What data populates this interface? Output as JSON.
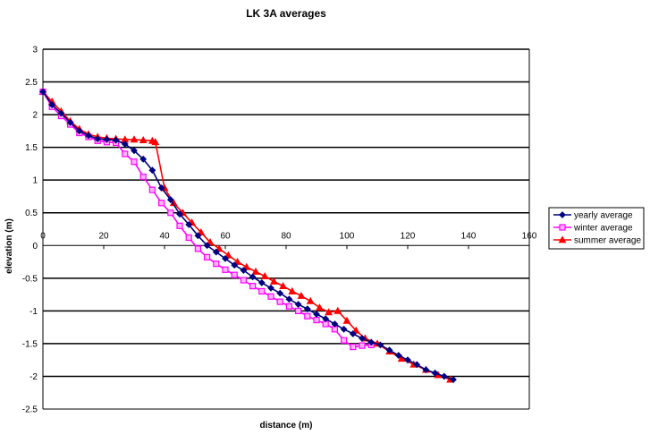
{
  "chart_data": {
    "type": "line",
    "title": "LK 3A averages",
    "xlabel": "distance (m)",
    "ylabel": "elevation (m)",
    "xlim": [
      0,
      160
    ],
    "ylim": [
      -2.5,
      3
    ],
    "xticks": [
      "0",
      "20",
      "40",
      "60",
      "80",
      "100",
      "120",
      "140",
      "160"
    ],
    "yticks": [
      "-2.5",
      "-2",
      "-1.5",
      "-1",
      "-0.5",
      "0",
      "0.5",
      "1",
      "1.5",
      "2",
      "2.5",
      "3"
    ],
    "grid": "horizontal",
    "legend_position": "right",
    "series": [
      {
        "name": "yearly average",
        "color": "#000080",
        "marker": "diamond",
        "x": [
          0,
          3,
          6,
          9,
          12,
          15,
          18,
          21,
          24,
          27,
          30,
          33,
          36,
          39,
          42,
          45,
          48,
          51,
          54,
          57,
          60,
          63,
          66,
          69,
          72,
          75,
          78,
          81,
          84,
          87,
          90,
          93,
          96,
          99,
          102,
          105,
          108,
          111,
          114,
          117,
          120,
          123,
          126,
          129,
          132,
          135
        ],
        "y": [
          2.35,
          2.15,
          2.02,
          1.88,
          1.75,
          1.68,
          1.63,
          1.62,
          1.61,
          1.55,
          1.45,
          1.32,
          1.15,
          0.88,
          0.7,
          0.48,
          0.32,
          0.15,
          0.0,
          -0.1,
          -0.2,
          -0.3,
          -0.38,
          -0.48,
          -0.57,
          -0.65,
          -0.73,
          -0.82,
          -0.9,
          -0.97,
          -1.05,
          -1.12,
          -1.2,
          -1.28,
          -1.35,
          -1.42,
          -1.48,
          -1.52,
          -1.6,
          -1.68,
          -1.75,
          -1.82,
          -1.9,
          -1.95,
          -2.0,
          -2.05
        ]
      },
      {
        "name": "winter average",
        "color": "#FF00FF",
        "marker": "square",
        "x": [
          0,
          3,
          6,
          9,
          12,
          15,
          18,
          21,
          24,
          27,
          30,
          33,
          36,
          39,
          42,
          45,
          48,
          51,
          54,
          57,
          60,
          63,
          66,
          69,
          72,
          75,
          78,
          81,
          84,
          87,
          90,
          93,
          96,
          99,
          102,
          105,
          108
        ],
        "y": [
          2.35,
          2.12,
          1.98,
          1.85,
          1.72,
          1.66,
          1.6,
          1.58,
          1.57,
          1.4,
          1.28,
          1.05,
          0.85,
          0.65,
          0.5,
          0.3,
          0.12,
          -0.05,
          -0.18,
          -0.28,
          -0.37,
          -0.45,
          -0.53,
          -0.62,
          -0.7,
          -0.78,
          -0.86,
          -0.93,
          -1.0,
          -1.08,
          -1.14,
          -1.2,
          -1.28,
          -1.45,
          -1.55,
          -1.53,
          -1.52
        ]
      },
      {
        "name": "summer average",
        "color": "#FF0000",
        "marker": "triangle",
        "x": [
          0,
          3,
          6,
          9,
          12,
          15,
          18,
          21,
          24,
          27,
          30,
          33,
          36,
          37,
          40,
          43,
          46,
          49,
          52,
          55,
          58,
          61,
          64,
          67,
          70,
          73,
          76,
          79,
          82,
          85,
          88,
          91,
          94,
          97,
          100,
          103,
          106,
          110,
          114,
          118,
          122,
          126,
          130,
          134
        ],
        "y": [
          2.35,
          2.2,
          2.05,
          1.9,
          1.78,
          1.7,
          1.66,
          1.64,
          1.63,
          1.62,
          1.62,
          1.61,
          1.6,
          1.58,
          0.88,
          0.65,
          0.5,
          0.35,
          0.2,
          0.05,
          -0.05,
          -0.15,
          -0.25,
          -0.33,
          -0.4,
          -0.47,
          -0.55,
          -0.62,
          -0.7,
          -0.77,
          -0.85,
          -0.95,
          -1.02,
          -1.0,
          -1.15,
          -1.3,
          -1.42,
          -1.5,
          -1.62,
          -1.73,
          -1.82,
          -1.9,
          -1.98,
          -2.05
        ]
      }
    ]
  }
}
